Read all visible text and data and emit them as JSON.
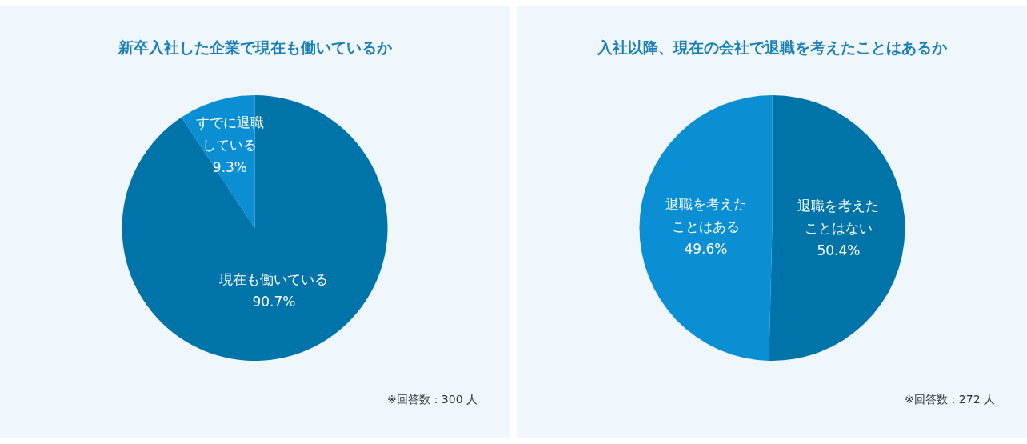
{
  "chart_data": [
    {
      "type": "pie",
      "title": "新卒入社した企業で現在も働いているか",
      "categories": [
        "現在も働いている",
        "すでに退職している"
      ],
      "values": [
        90.7,
        9.3
      ],
      "value_labels": [
        "90.7%",
        "9.3%"
      ],
      "colors": [
        "#0073a8",
        "#0a8fd4"
      ],
      "annotations": [
        "※回答数：300 人"
      ]
    },
    {
      "type": "pie",
      "title": "入社以降、現在の会社で退職を考えたことはあるか",
      "categories": [
        "退職を考えたことはない",
        "退職を考えたことはある"
      ],
      "values": [
        50.4,
        49.6
      ],
      "value_labels": [
        "50.4%",
        "49.6%"
      ],
      "colors": [
        "#0073a8",
        "#0a8fd4"
      ],
      "annotations": [
        "※回答数：272 人"
      ]
    }
  ]
}
